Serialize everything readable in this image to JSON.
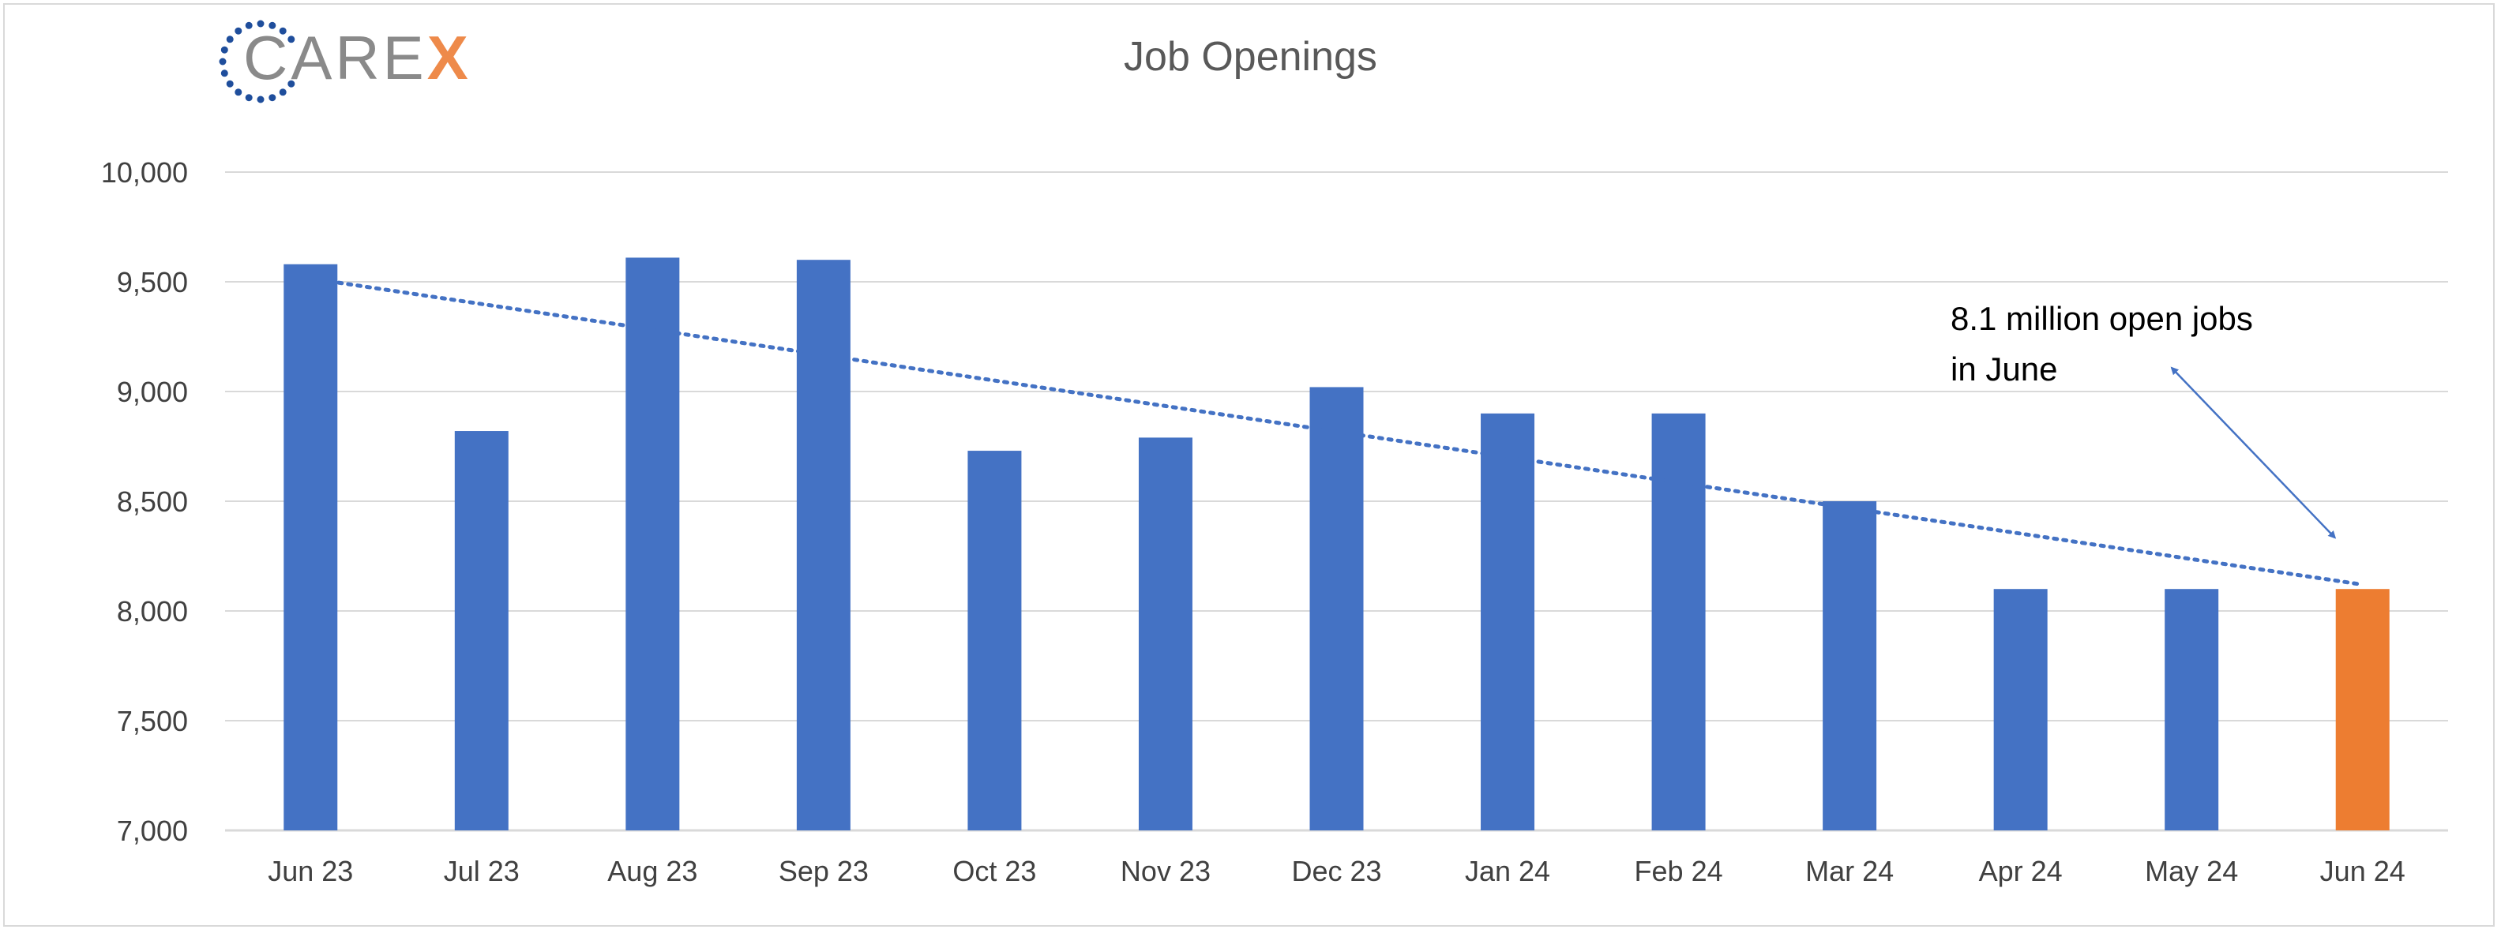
{
  "logo": {
    "text_main": "CARE",
    "text_accent": "X"
  },
  "chart_data": {
    "type": "bar",
    "title": "Job Openings",
    "xlabel": "",
    "ylabel": "",
    "categories": [
      "Jun 23",
      "Jul 23",
      "Aug 23",
      "Sep 23",
      "Oct 23",
      "Nov 23",
      "Dec 23",
      "Jan 24",
      "Feb 24",
      "Mar 24",
      "Apr 24",
      "May 24",
      "Jun 24"
    ],
    "values": [
      9580,
      8820,
      9610,
      9600,
      8730,
      8790,
      9020,
      8900,
      8900,
      8500,
      8100,
      8100,
      8100
    ],
    "ylim": [
      7000,
      10000
    ],
    "yticks": [
      7000,
      7500,
      8000,
      8500,
      9000,
      9500,
      10000
    ],
    "ytick_labels": [
      "7,000",
      "7,500",
      "8,000",
      "8,500",
      "9,000",
      "9,500",
      "10,000"
    ],
    "bar_color": "#4472c4",
    "highlight_color": "#ed7d31",
    "highlight_index": 12,
    "trendline": {
      "type": "linear",
      "style": "dotted",
      "color": "#4472c4",
      "start_value": 9515,
      "end_value": 8120
    },
    "annotation": {
      "lines": [
        "8.1 million open jobs",
        "in June"
      ],
      "arrow": "double-headed",
      "points_to": "Jun 24"
    },
    "grid": true,
    "legend": "none"
  },
  "colors": {
    "gridline": "#d9d9d9",
    "axis": "#d9d9d9",
    "arrow": "#4472c4"
  }
}
